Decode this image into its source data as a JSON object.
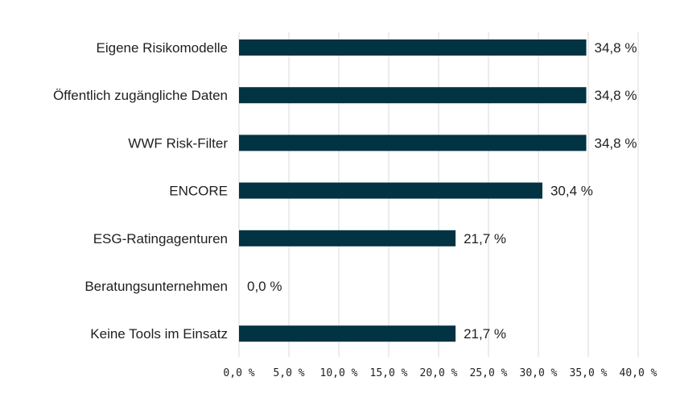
{
  "chart_data": {
    "type": "bar",
    "orientation": "horizontal",
    "categories": [
      "Eigene Risikomodelle",
      "Öffentlich zugängliche Daten",
      "WWF Risk-Filter",
      "ENCORE",
      "ESG-Ratingagenturen",
      "Beratungsunternehmen",
      "Keine Tools im Einsatz"
    ],
    "values": [
      34.8,
      34.8,
      34.8,
      30.4,
      21.7,
      0.0,
      21.7
    ],
    "value_labels": [
      "34,8 %",
      "34,8 %",
      "34,8 %",
      "30,4 %",
      "21,7 %",
      "0,0 %",
      "21,7 %"
    ],
    "x_ticks": [
      0,
      5,
      10,
      15,
      20,
      25,
      30,
      35,
      40
    ],
    "x_tick_labels": [
      "0,0 %",
      "5,0 %",
      "10,0 %",
      "15,0 %",
      "20,0 %",
      "25,0 %",
      "30,0 %",
      "35,0 %",
      "40,0 %"
    ],
    "xlim": [
      0,
      40
    ],
    "grid": "vertical",
    "legend": "none",
    "title": "",
    "xlabel": "",
    "ylabel": "",
    "bar_color": "#023343",
    "grid_color": "#d9d9d9"
  }
}
